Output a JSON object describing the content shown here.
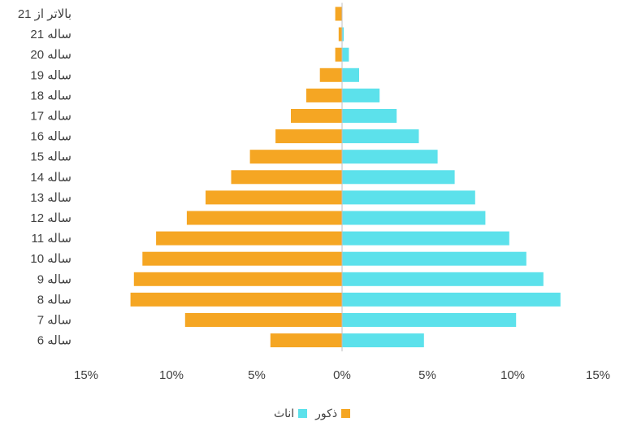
{
  "chart_data": {
    "type": "bar",
    "orientation": "horizontal",
    "categories": [
      "بالاتر از 21",
      "21 ساله",
      "20 ساله",
      "19 ساله",
      "18 ساله",
      "17 ساله",
      "16 ساله",
      "15 ساله",
      "14 ساله",
      "13 ساله",
      "12 ساله",
      "11 ساله",
      "10 ساله",
      "9 ساله",
      "8 ساله",
      "7 ساله",
      "6 ساله"
    ],
    "series": [
      {
        "name": "ذکور",
        "color": "#F5A623",
        "side": "left",
        "values": [
          0.4,
          0.2,
          0.4,
          1.3,
          2.1,
          3.0,
          3.9,
          5.4,
          6.5,
          8.0,
          9.1,
          10.9,
          11.7,
          12.2,
          12.4,
          9.2,
          4.2
        ]
      },
      {
        "name": "اناث",
        "color": "#5CE1EB",
        "side": "right",
        "values": [
          0.0,
          0.1,
          0.4,
          1.0,
          2.2,
          3.2,
          4.5,
          5.6,
          6.6,
          7.8,
          8.4,
          9.8,
          10.8,
          11.8,
          12.8,
          10.2,
          4.8
        ]
      }
    ],
    "xlim": [
      -15,
      15
    ],
    "xticks": [
      "15%",
      "10%",
      "5%",
      "0%",
      "5%",
      "10%",
      "15%"
    ],
    "grid": false,
    "legend_position": "bottom"
  }
}
